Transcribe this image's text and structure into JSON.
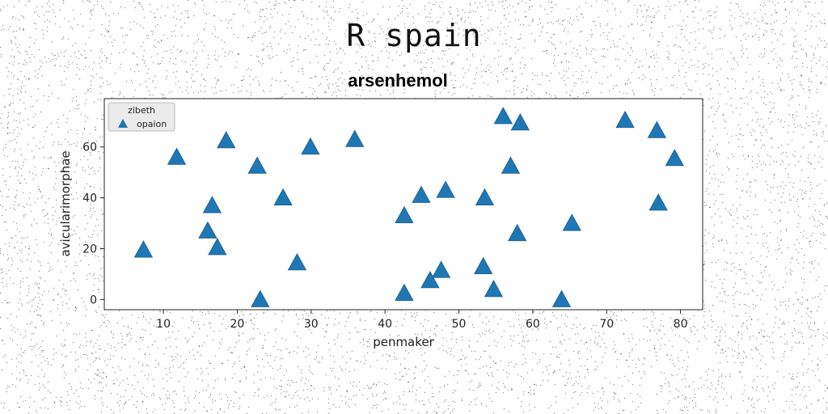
{
  "figure": {
    "suptitle": "R spain"
  },
  "chart_data": {
    "type": "scatter",
    "title": "arsenhemol",
    "xlabel": "penmaker",
    "ylabel": "avicularimorphae",
    "xlim": [
      2,
      83
    ],
    "ylim": [
      -4,
      79
    ],
    "xticks": [
      10,
      20,
      30,
      40,
      50,
      60,
      70,
      80
    ],
    "yticks": [
      0,
      20,
      40,
      60
    ],
    "grid": false,
    "legend": {
      "title": "zibeth",
      "placement": "top-left",
      "entries": [
        "opaion"
      ]
    },
    "series": [
      {
        "name": "opaion",
        "marker": "triangle",
        "color": "#1f77b4",
        "x": [
          7.3,
          11.8,
          16.0,
          16.6,
          17.3,
          18.5,
          22.7,
          23.1,
          26.2,
          28.1,
          29.9,
          35.9,
          42.6,
          42.6,
          44.9,
          46.1,
          47.6,
          48.2,
          53.3,
          53.5,
          54.7,
          56.0,
          57.0,
          57.9,
          58.3,
          63.9,
          65.3,
          72.5,
          76.8,
          77.0,
          79.2
        ],
        "y": [
          19.5,
          56.0,
          27.0,
          37.0,
          20.5,
          62.5,
          52.5,
          0.0,
          40.0,
          14.5,
          60.0,
          63.0,
          2.5,
          33.0,
          41.0,
          7.5,
          11.5,
          43.0,
          13.0,
          40.0,
          4.0,
          72.0,
          52.5,
          26.0,
          69.5,
          0.0,
          30.0,
          70.5,
          66.5,
          38.0,
          55.5
        ]
      }
    ]
  }
}
